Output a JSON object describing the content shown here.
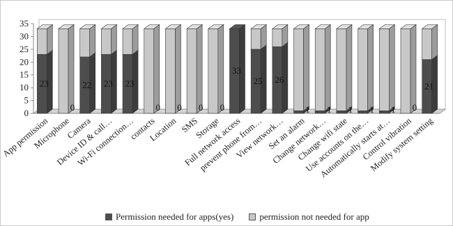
{
  "chart_data": {
    "type": "bar",
    "stacked": true,
    "three_d": true,
    "title": "",
    "xlabel": "",
    "ylabel": "",
    "ylim": [
      0,
      35
    ],
    "yticks": [
      0,
      5,
      10,
      15,
      20,
      25,
      30,
      35
    ],
    "grid": false,
    "legend_position": "bottom",
    "categories": [
      "App permission",
      "Microphone",
      "Camera",
      "Device ID & call…",
      "Wi-Fi connection…",
      "contacts",
      "Location",
      "SMS",
      "Storage",
      "Full network access",
      "prevent phone from…",
      "View network…",
      "Set an alarm",
      "Change network…",
      "Change wifi state",
      "Use accounts on the…",
      "Automatically starts at…",
      "Control vibration",
      "Modify system setting"
    ],
    "series": [
      {
        "name": "Permission needed for apps(yes)",
        "color": "#4d4d4d",
        "values": [
          23,
          0,
          22,
          23,
          23,
          0,
          0,
          0,
          0,
          33,
          25,
          26,
          1,
          1,
          1,
          1,
          1,
          0,
          21
        ]
      },
      {
        "name": "permission not needed for app",
        "color": "#c8c8c8",
        "values": [
          10,
          33,
          11,
          10,
          10,
          33,
          33,
          33,
          33,
          0,
          8,
          7,
          32,
          32,
          32,
          32,
          32,
          33,
          12
        ]
      }
    ],
    "data_labels": [
      "23",
      "0",
      "22",
      "23",
      "23",
      "0",
      "0",
      "0",
      "0",
      "33",
      "25",
      "26",
      "1",
      "1",
      "1",
      "1",
      "1",
      "0",
      "21"
    ]
  }
}
